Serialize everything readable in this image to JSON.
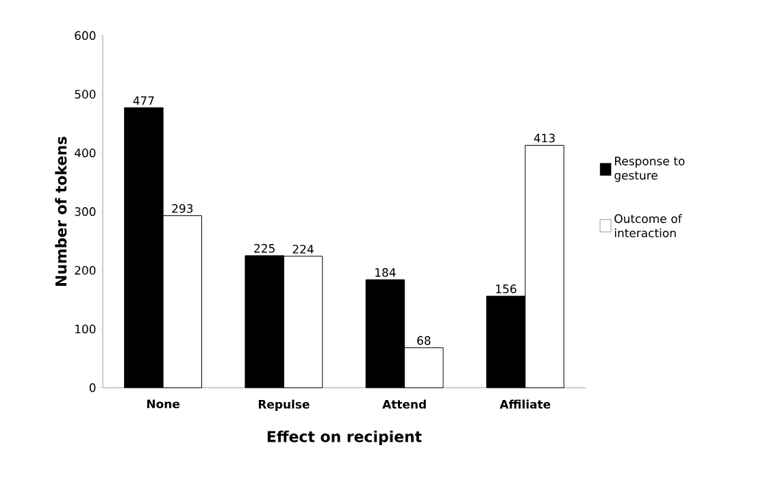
{
  "chart_data": {
    "type": "bar",
    "xlabel": "Effect on recipient",
    "ylabel": "Number of tokens",
    "categories": [
      "None",
      "Repulse",
      "Attend",
      "Affiliate"
    ],
    "series": [
      {
        "name": "Response to gesture",
        "color": "#000000",
        "values": [
          477,
          225,
          184,
          156
        ]
      },
      {
        "name": "Outcome of interaction",
        "color": "#ffffff",
        "values": [
          293,
          224,
          68,
          413
        ]
      }
    ],
    "ylim": [
      0,
      600
    ],
    "yticks": [
      0,
      100,
      200,
      300,
      400,
      500,
      600
    ],
    "data_labels": true,
    "legend": "right",
    "grid": false
  }
}
